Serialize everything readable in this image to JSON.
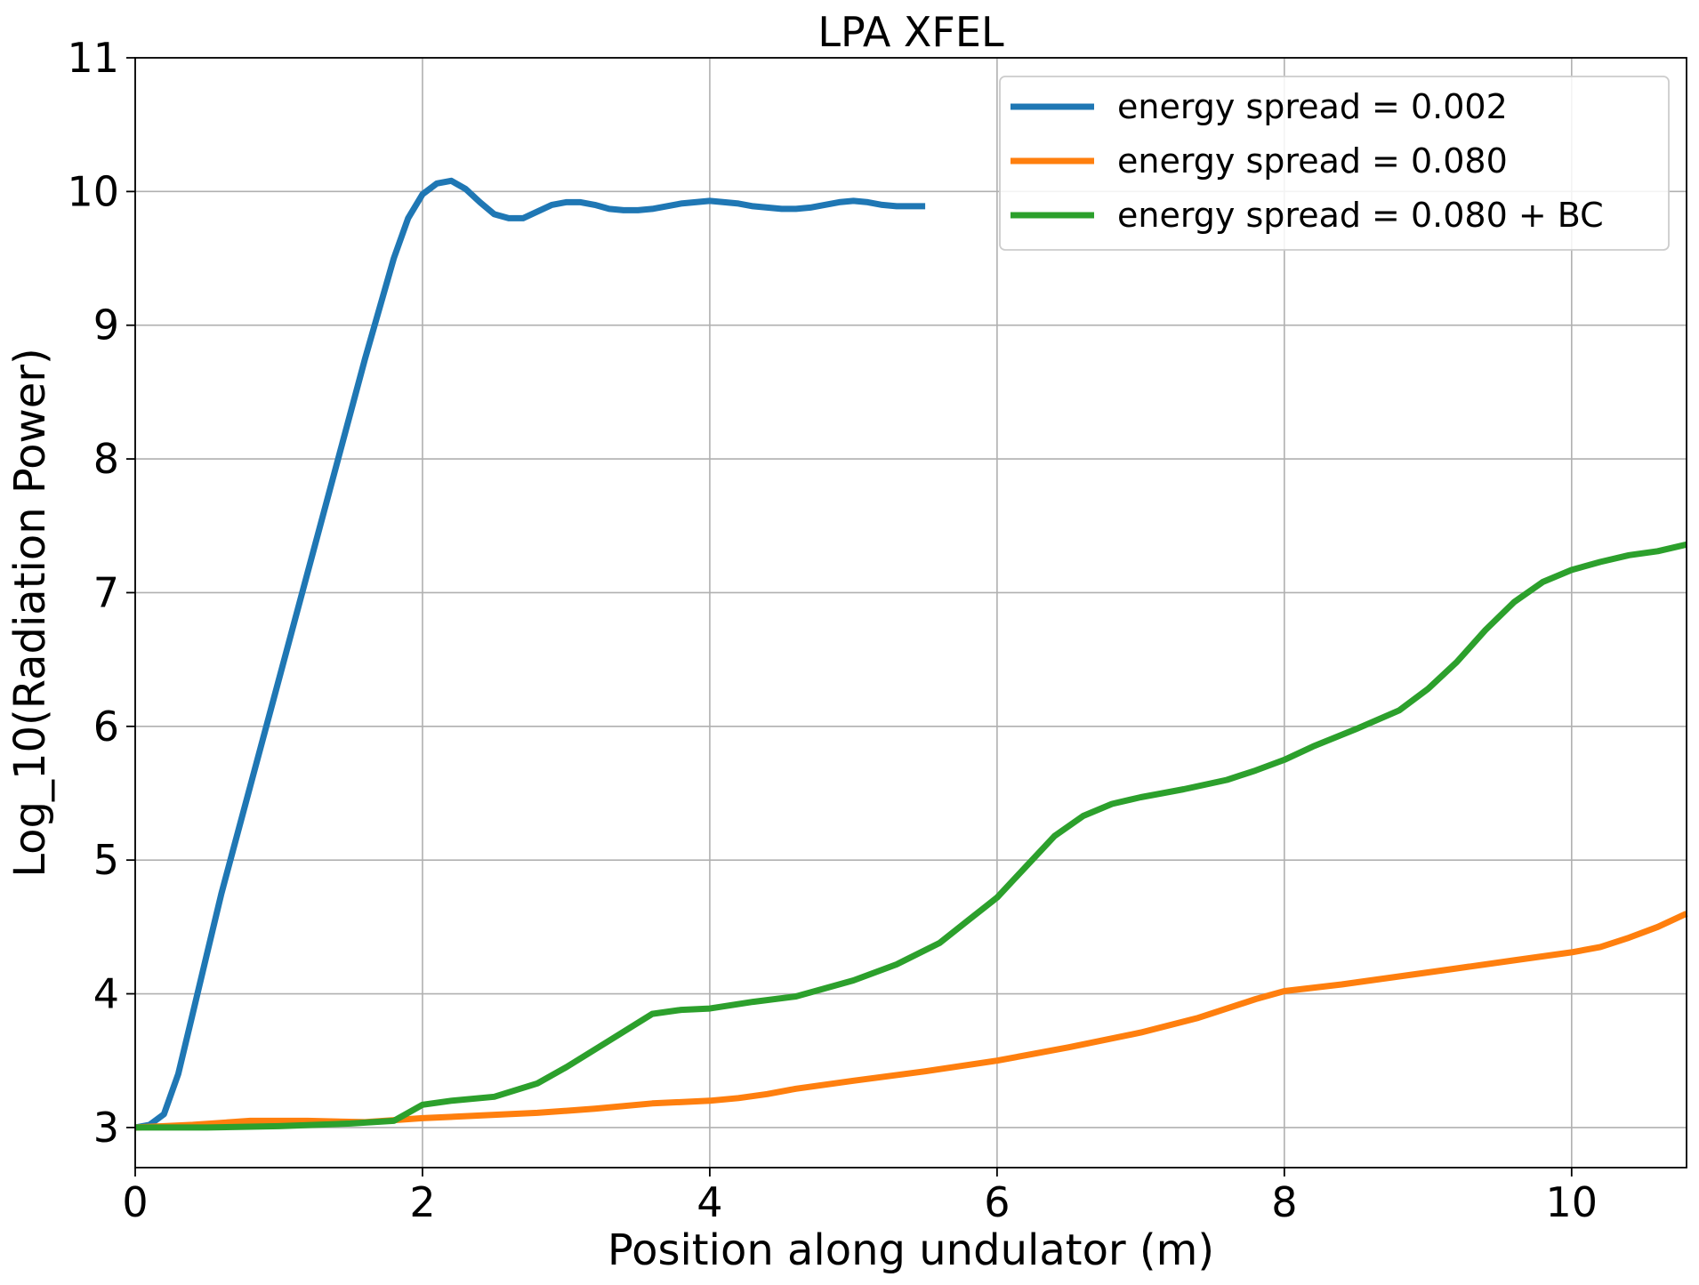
{
  "chart_data": {
    "type": "line",
    "title": "LPA XFEL",
    "xlabel": "Position along undulator (m)",
    "ylabel": "Log_10(Radiation Power)",
    "xlim": [
      0,
      10.8
    ],
    "ylim": [
      2.7,
      11
    ],
    "xticks": [
      0,
      2,
      4,
      6,
      8,
      10
    ],
    "yticks": [
      3,
      4,
      5,
      6,
      7,
      8,
      9,
      10,
      11
    ],
    "grid": true,
    "legend_position": "top-right",
    "series": [
      {
        "name": "energy spread = 0.002",
        "color": "#1f77b4",
        "x": [
          0,
          0.1,
          0.2,
          0.3,
          0.4,
          0.5,
          0.6,
          0.8,
          1.0,
          1.2,
          1.4,
          1.6,
          1.8,
          1.9,
          2.0,
          2.1,
          2.2,
          2.3,
          2.4,
          2.5,
          2.6,
          2.7,
          2.8,
          2.9,
          3.0,
          3.1,
          3.2,
          3.3,
          3.4,
          3.5,
          3.6,
          3.7,
          3.8,
          3.9,
          4.0,
          4.1,
          4.2,
          4.3,
          4.4,
          4.5,
          4.6,
          4.7,
          4.8,
          4.9,
          5.0,
          5.1,
          5.2,
          5.3,
          5.4,
          5.5
        ],
        "y": [
          3.0,
          3.02,
          3.1,
          3.4,
          3.85,
          4.3,
          4.75,
          5.55,
          6.35,
          7.15,
          7.95,
          8.75,
          9.5,
          9.8,
          9.98,
          10.06,
          10.08,
          10.02,
          9.92,
          9.83,
          9.8,
          9.8,
          9.85,
          9.9,
          9.92,
          9.92,
          9.9,
          9.87,
          9.86,
          9.86,
          9.87,
          9.89,
          9.91,
          9.92,
          9.93,
          9.92,
          9.91,
          9.89,
          9.88,
          9.87,
          9.87,
          9.88,
          9.9,
          9.92,
          9.93,
          9.92,
          9.9,
          9.89,
          9.89,
          9.89
        ]
      },
      {
        "name": "energy spread = 0.080",
        "color": "#ff7f0e",
        "x": [
          0,
          0.4,
          0.8,
          1.2,
          1.6,
          2.0,
          2.4,
          2.8,
          3.2,
          3.6,
          4.0,
          4.2,
          4.4,
          4.6,
          5.0,
          5.5,
          6.0,
          6.5,
          7.0,
          7.4,
          7.8,
          8.0,
          8.4,
          8.8,
          9.2,
          9.6,
          10.0,
          10.2,
          10.4,
          10.6,
          10.8
        ],
        "y": [
          3.0,
          3.02,
          3.05,
          3.05,
          3.04,
          3.07,
          3.09,
          3.11,
          3.14,
          3.18,
          3.2,
          3.22,
          3.25,
          3.29,
          3.35,
          3.42,
          3.5,
          3.6,
          3.71,
          3.82,
          3.96,
          4.02,
          4.07,
          4.13,
          4.19,
          4.25,
          4.31,
          4.35,
          4.42,
          4.5,
          4.6
        ]
      },
      {
        "name": "energy spread = 0.080 + BC",
        "color": "#2ca02c",
        "x": [
          0,
          0.5,
          1.0,
          1.5,
          1.8,
          2.0,
          2.2,
          2.5,
          2.8,
          3.0,
          3.3,
          3.6,
          3.8,
          4.0,
          4.3,
          4.6,
          5.0,
          5.3,
          5.6,
          5.8,
          6.0,
          6.2,
          6.4,
          6.6,
          6.8,
          7.0,
          7.3,
          7.6,
          7.8,
          8.0,
          8.2,
          8.5,
          8.8,
          9.0,
          9.2,
          9.4,
          9.6,
          9.8,
          10.0,
          10.2,
          10.4,
          10.6,
          10.8
        ],
        "y": [
          3.0,
          3.0,
          3.01,
          3.03,
          3.05,
          3.17,
          3.2,
          3.23,
          3.33,
          3.45,
          3.65,
          3.85,
          3.88,
          3.89,
          3.94,
          3.98,
          4.1,
          4.22,
          4.38,
          4.55,
          4.72,
          4.95,
          5.18,
          5.33,
          5.42,
          5.47,
          5.53,
          5.6,
          5.67,
          5.75,
          5.85,
          5.98,
          6.12,
          6.28,
          6.48,
          6.72,
          6.93,
          7.08,
          7.17,
          7.23,
          7.28,
          7.31,
          7.36
        ]
      }
    ]
  }
}
